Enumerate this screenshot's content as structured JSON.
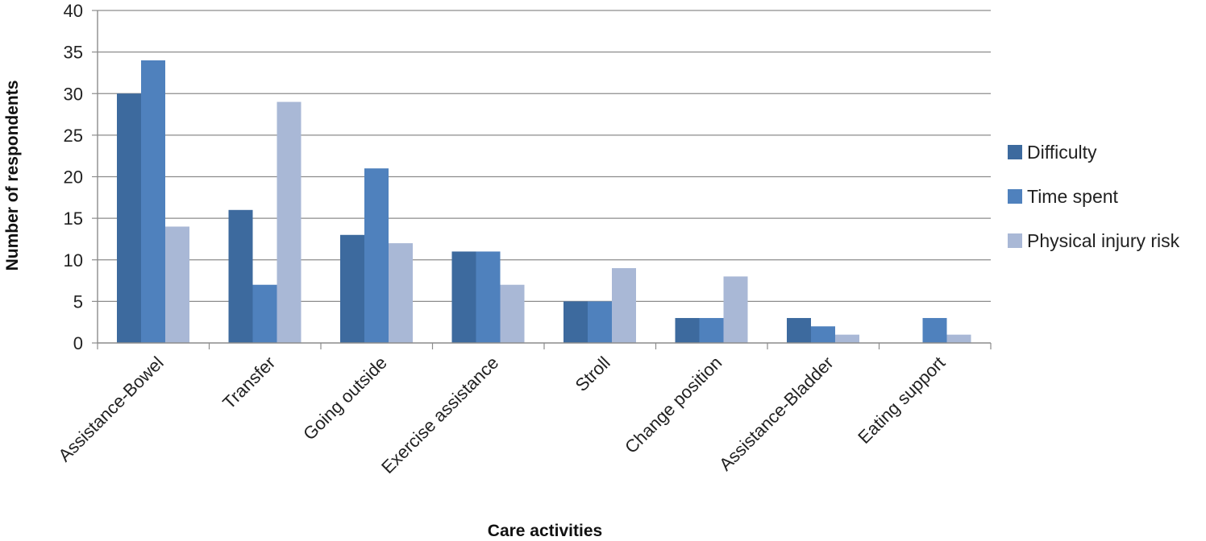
{
  "chart_data": {
    "type": "bar",
    "categories": [
      "Assistance-Bowel",
      "Transfer",
      "Going outside",
      "Exercise assistance",
      "Stroll",
      "Change position",
      "Assistance-Bladder",
      "Eating support"
    ],
    "series": [
      {
        "name": "Difficulty",
        "color": "#3d6a9e",
        "values": [
          30,
          16,
          13,
          11,
          5,
          3,
          3,
          0
        ]
      },
      {
        "name": "Time spent",
        "color": "#4f81bd",
        "values": [
          34,
          7,
          21,
          11,
          5,
          3,
          2,
          3
        ]
      },
      {
        "name": "Physical injury risk",
        "color": "#a9b8d6",
        "values": [
          14,
          29,
          12,
          7,
          9,
          8,
          1,
          1
        ]
      }
    ],
    "xlabel": "Care activities",
    "ylabel": "Number of respondents",
    "ylim": [
      0,
      40
    ],
    "yticks": [
      "0",
      "5",
      "10",
      "15",
      "20",
      "25",
      "30",
      "35",
      "40"
    ],
    "grid": true,
    "legend_position": "right"
  }
}
